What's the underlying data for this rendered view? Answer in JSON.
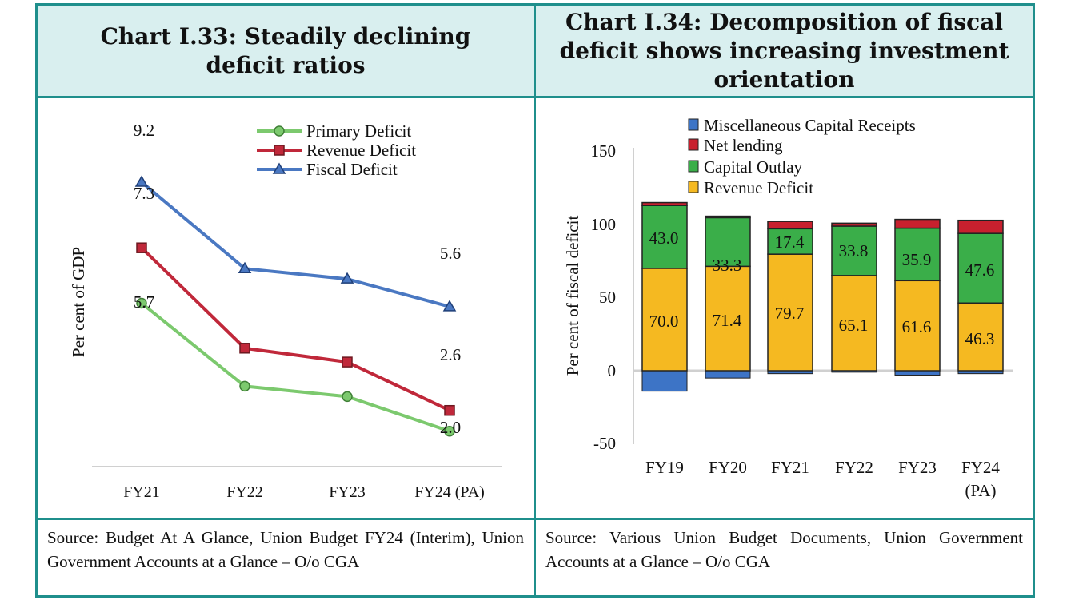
{
  "left_panel": {
    "title_line1": "Chart I.33: Steadily declining",
    "title_line2": "deficit ratios",
    "source": "Source: Budget At A Glance, Union Budget FY24 (Interim), Union Government Accounts at a Glance – O/o CGA"
  },
  "right_panel": {
    "title_line1": "Chart I.34: Decomposition of fiscal",
    "title_line2": "deficit shows increasing investment",
    "title_line3": "orientation",
    "source": "Source: Various Union Budget Documents, Union Government Accounts at a Glance – O/o CGA"
  },
  "colors": {
    "border": "#1f8f8c",
    "title_bg": "#d9efef",
    "fiscal": "#4a78c2",
    "revenue_line": "#c0283a",
    "primary": "#7cc96e",
    "misc": "#3d74c6",
    "net_lending": "#c8202e",
    "capital": "#3aae49",
    "revenue_bar": "#f5b921"
  },
  "chart_data": [
    {
      "type": "line",
      "title": "Chart I.33: Steadily declining deficit ratios",
      "ylabel": "Per cent of GDP",
      "categories": [
        "FY21",
        "FY22",
        "FY23",
        "FY24 (PA)"
      ],
      "ylim": [
        1.0,
        10.0
      ],
      "series": [
        {
          "name": "Primary Deficit",
          "values": [
            5.7,
            3.3,
            3.0,
            2.0
          ],
          "marker": "circle",
          "color": "#7cc96e"
        },
        {
          "name": "Revenue Deficit",
          "values": [
            7.3,
            4.4,
            4.0,
            2.6
          ],
          "marker": "square",
          "color": "#c0283a"
        },
        {
          "name": "Fiscal Deficit",
          "values": [
            9.2,
            6.7,
            6.4,
            5.6
          ],
          "marker": "triangle",
          "color": "#4a78c2"
        }
      ],
      "data_labels": [
        {
          "text": "9.2"
        },
        {
          "text": "7.3"
        },
        {
          "text": "5.7"
        },
        {
          "text": "5.6"
        },
        {
          "text": "2.6"
        },
        {
          "text": "2.0"
        }
      ],
      "legend_position": "top-right"
    },
    {
      "type": "bar",
      "stacked": true,
      "title": "Chart I.34: Decomposition of fiscal deficit shows increasing investment orientation",
      "ylabel": "Per cent of fiscal deficit",
      "categories": [
        "FY19",
        "FY20",
        "FY21",
        "FY22",
        "FY23",
        "FY24"
      ],
      "category_sublabels": [
        "",
        "",
        "",
        "",
        "",
        "(PA)"
      ],
      "ylim": [
        -50,
        150
      ],
      "yticks": [
        "150",
        "100",
        "50",
        "0",
        "-50"
      ],
      "series": [
        {
          "name": "Miscellaneous Capital Receipts",
          "values": [
            -14,
            -5,
            -2,
            -1,
            -3,
            -2
          ],
          "color": "#3d74c6"
        },
        {
          "name": "Net lending",
          "values": [
            2,
            1,
            5,
            2,
            6,
            9
          ],
          "color": "#c8202e"
        },
        {
          "name": "Capital Outlay",
          "values": [
            43.0,
            33.3,
            17.4,
            33.8,
            35.9,
            47.6
          ],
          "color": "#3aae49"
        },
        {
          "name": "Revenue Deficit",
          "values": [
            70.0,
            71.4,
            79.7,
            65.1,
            61.6,
            46.3
          ],
          "color": "#f5b921"
        }
      ],
      "capital_labels": [
        "43.0",
        "33.3",
        "17.4",
        "33.8",
        "35.9",
        "47.6"
      ],
      "revenue_labels": [
        "70.0",
        "71.4",
        "79.7",
        "65.1",
        "61.6",
        "46.3"
      ],
      "legend_position": "top-left"
    }
  ]
}
